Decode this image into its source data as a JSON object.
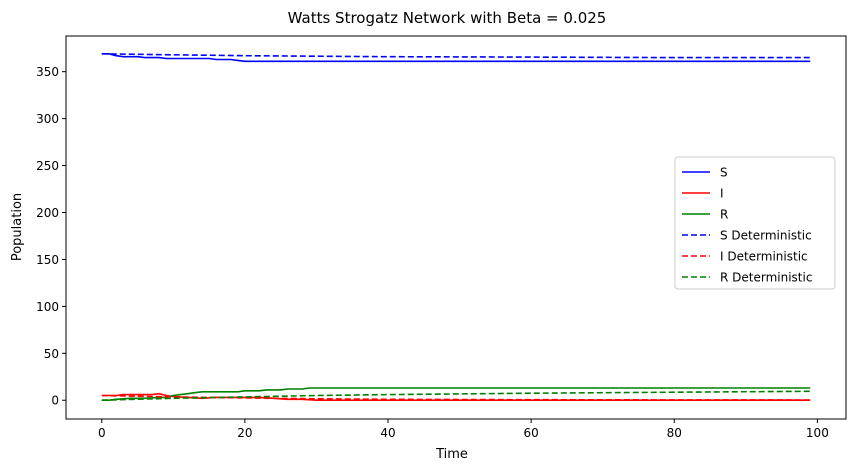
{
  "chart_data": {
    "type": "line",
    "title": "Watts Strogatz Network with Beta = 0.025",
    "xlabel": "Time",
    "ylabel": "Population",
    "xlim": [
      -5,
      104
    ],
    "ylim": [
      -20,
      388
    ],
    "xticks": [
      0,
      20,
      40,
      60,
      80,
      100
    ],
    "yticks": [
      0,
      50,
      100,
      150,
      200,
      250,
      300,
      350
    ],
    "grid": false,
    "legend_position": "center-right",
    "series": [
      {
        "name": "S",
        "style": "solid",
        "color": "#0000ff",
        "points": [
          [
            0,
            369
          ],
          [
            1,
            369
          ],
          [
            2,
            367
          ],
          [
            3,
            366
          ],
          [
            5,
            366
          ],
          [
            6,
            365
          ],
          [
            8,
            365
          ],
          [
            9,
            364
          ],
          [
            15,
            364
          ],
          [
            16,
            363
          ],
          [
            18,
            363
          ],
          [
            19,
            362
          ],
          [
            20,
            361
          ],
          [
            99,
            361
          ]
        ]
      },
      {
        "name": "I",
        "style": "solid",
        "color": "#ff0000",
        "points": [
          [
            0,
            5
          ],
          [
            2,
            5
          ],
          [
            3,
            6
          ],
          [
            7,
            6
          ],
          [
            8,
            7
          ],
          [
            9,
            5
          ],
          [
            10,
            4
          ],
          [
            12,
            3
          ],
          [
            14,
            2
          ],
          [
            16,
            3
          ],
          [
            18,
            3
          ],
          [
            20,
            3
          ],
          [
            22,
            3
          ],
          [
            24,
            2
          ],
          [
            26,
            1
          ],
          [
            28,
            1
          ],
          [
            30,
            0
          ],
          [
            99,
            0
          ]
        ]
      },
      {
        "name": "R",
        "style": "solid",
        "color": "#008000",
        "points": [
          [
            0,
            0
          ],
          [
            1,
            0
          ],
          [
            2,
            1
          ],
          [
            4,
            2
          ],
          [
            6,
            2
          ],
          [
            8,
            3
          ],
          [
            9,
            3
          ],
          [
            10,
            5
          ],
          [
            11,
            6
          ],
          [
            12,
            7
          ],
          [
            13,
            8
          ],
          [
            14,
            9
          ],
          [
            19,
            9
          ],
          [
            20,
            10
          ],
          [
            22,
            10
          ],
          [
            23,
            11
          ],
          [
            25,
            11
          ],
          [
            26,
            12
          ],
          [
            28,
            12
          ],
          [
            29,
            13
          ],
          [
            99,
            13
          ]
        ]
      },
      {
        "name": "S Deterministic",
        "style": "dashed",
        "color": "#0000ff",
        "points": [
          [
            0,
            369
          ],
          [
            10,
            368
          ],
          [
            20,
            367
          ],
          [
            40,
            366
          ],
          [
            60,
            365.5
          ],
          [
            80,
            365
          ],
          [
            99,
            365
          ]
        ]
      },
      {
        "name": "I Deterministic",
        "style": "dashed",
        "color": "#ff0000",
        "points": [
          [
            0,
            5
          ],
          [
            10,
            3.5
          ],
          [
            20,
            2.5
          ],
          [
            30,
            1.5
          ],
          [
            40,
            1
          ],
          [
            60,
            0.6
          ],
          [
            80,
            0.3
          ],
          [
            99,
            0.2
          ]
        ]
      },
      {
        "name": "R Deterministic",
        "style": "dashed",
        "color": "#008000",
        "points": [
          [
            0,
            0
          ],
          [
            10,
            2
          ],
          [
            20,
            3.5
          ],
          [
            30,
            5
          ],
          [
            40,
            6
          ],
          [
            60,
            7.5
          ],
          [
            80,
            8.5
          ],
          [
            99,
            9.5
          ]
        ]
      }
    ]
  }
}
